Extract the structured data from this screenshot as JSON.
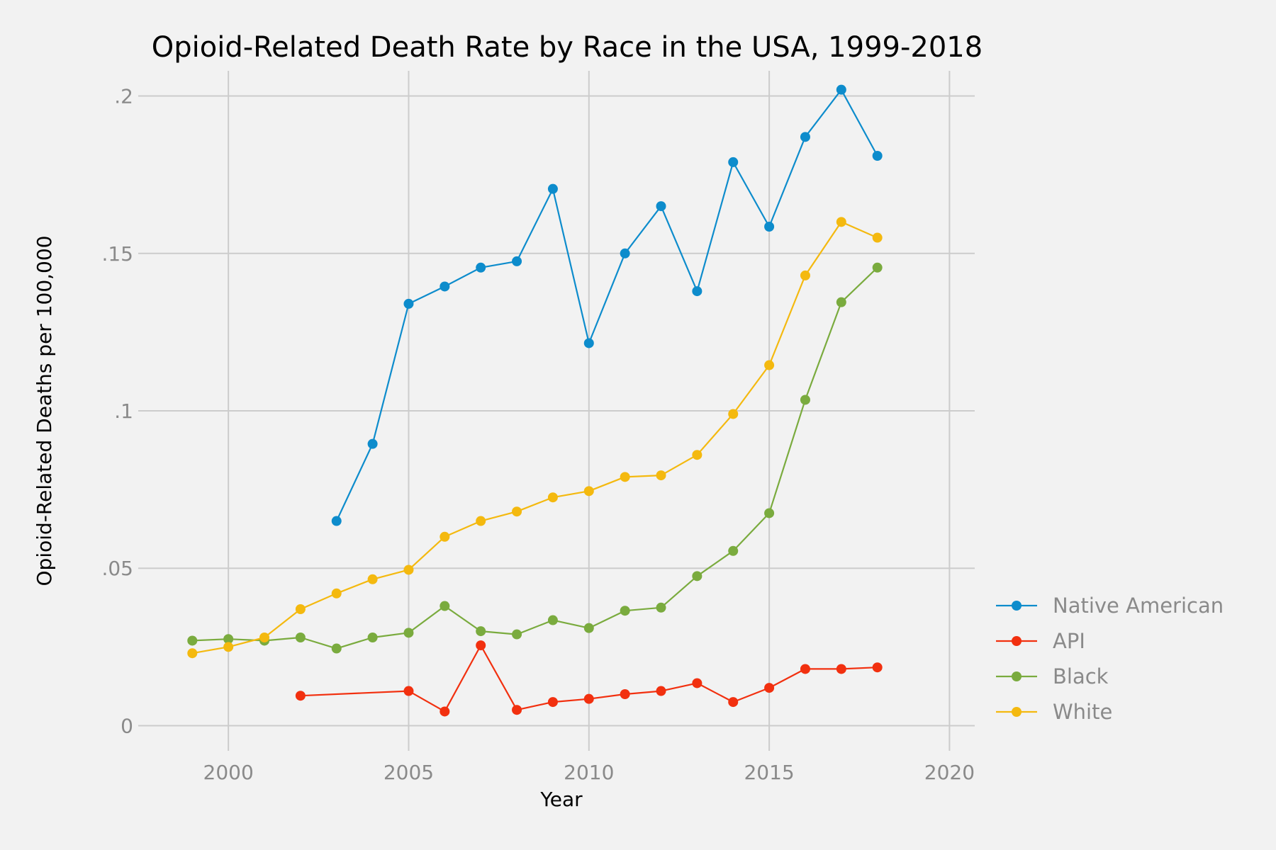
{
  "chart_data": {
    "type": "line",
    "title": "Opioid-Related Death Rate by Race in the USA, 1999-2018",
    "xlabel": "Year",
    "ylabel": "Opioid-Related Deaths per 100,000",
    "xlim": [
      1997.5,
      2020.7
    ],
    "ylim": [
      -0.008,
      0.208
    ],
    "x_ticks": [
      2000,
      2005,
      2010,
      2015,
      2020
    ],
    "x_tick_labels": [
      "2000",
      "2005",
      "2010",
      "2015",
      "2020"
    ],
    "y_ticks": [
      0,
      0.05,
      0.1,
      0.15,
      0.2
    ],
    "y_tick_labels": [
      "0",
      ".05",
      ".1",
      ".15",
      ".2"
    ],
    "grid": true,
    "legend_position": "right",
    "series": [
      {
        "name": "Native American",
        "color": "#0d8ccc",
        "x": [
          2003,
          2004,
          2005,
          2006,
          2007,
          2008,
          2009,
          2010,
          2011,
          2012,
          2013,
          2014,
          2015,
          2016,
          2017,
          2018
        ],
        "values": [
          0.065,
          0.0895,
          0.134,
          0.1395,
          0.1455,
          0.1475,
          0.1705,
          0.1215,
          0.15,
          0.165,
          0.138,
          0.179,
          0.1585,
          0.187,
          0.202,
          0.181
        ]
      },
      {
        "name": "API",
        "color": "#f2300f",
        "x": [
          2002,
          2005,
          2006,
          2007,
          2008,
          2009,
          2010,
          2011,
          2012,
          2013,
          2014,
          2015,
          2016,
          2017,
          2018
        ],
        "values": [
          0.0095,
          0.011,
          0.0045,
          0.0255,
          0.005,
          0.0075,
          0.0085,
          0.01,
          0.011,
          0.0135,
          0.0075,
          0.012,
          0.018,
          0.018,
          0.0185
        ]
      },
      {
        "name": "Black",
        "color": "#7aab3e",
        "x": [
          1999,
          2000,
          2001,
          2002,
          2003,
          2004,
          2005,
          2006,
          2007,
          2008,
          2009,
          2010,
          2011,
          2012,
          2013,
          2014,
          2015,
          2016,
          2017,
          2018
        ],
        "values": [
          0.027,
          0.0275,
          0.027,
          0.028,
          0.0245,
          0.028,
          0.0295,
          0.038,
          0.03,
          0.029,
          0.0335,
          0.031,
          0.0365,
          0.0375,
          0.0475,
          0.0555,
          0.0675,
          0.1035,
          0.1345,
          0.1455
        ]
      },
      {
        "name": "White",
        "color": "#f4b90f",
        "x": [
          1999,
          2000,
          2001,
          2002,
          2003,
          2004,
          2005,
          2006,
          2007,
          2008,
          2009,
          2010,
          2011,
          2012,
          2013,
          2014,
          2015,
          2016,
          2017,
          2018
        ],
        "values": [
          0.023,
          0.025,
          0.028,
          0.037,
          0.042,
          0.0465,
          0.0495,
          0.06,
          0.065,
          0.068,
          0.0725,
          0.0745,
          0.079,
          0.0795,
          0.086,
          0.099,
          0.1145,
          0.143,
          0.16,
          0.155
        ]
      }
    ]
  }
}
